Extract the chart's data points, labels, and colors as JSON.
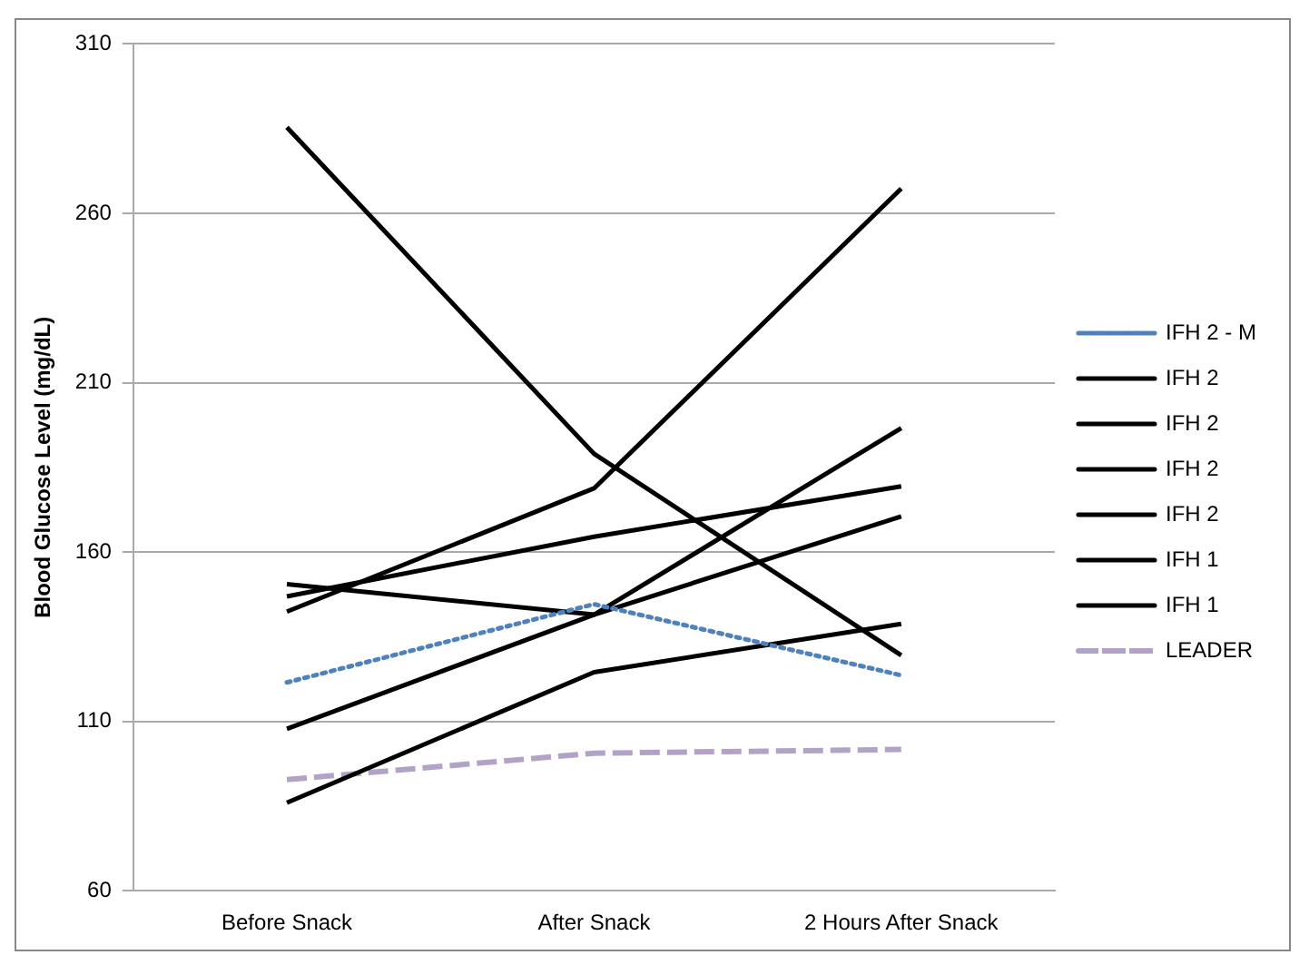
{
  "chart_data": {
    "type": "line",
    "ylabel": "Blood Glucose Level (mg/dL)",
    "categories": [
      "Before Snack",
      "After Snack",
      "2 Hours After Snack"
    ],
    "ylim": [
      60,
      310
    ],
    "yticks": [
      60,
      110,
      160,
      210,
      260,
      310
    ],
    "grid": "y",
    "legend": "right",
    "marker": "none",
    "series": [
      {
        "name": "IFH 2 - M",
        "color": "#4f81bd",
        "line_style": "dotted",
        "values": [
          121.5,
          144.6,
          123.6
        ]
      },
      {
        "name": "IFH 2",
        "color": "#000000",
        "line_style": "solid",
        "values": [
          285.4,
          189,
          129.5
        ]
      },
      {
        "name": "IFH 2",
        "color": "#000000",
        "line_style": "solid",
        "values": [
          142.4,
          178.8,
          267.3
        ]
      },
      {
        "name": "IFH 2",
        "color": "#000000",
        "line_style": "solid",
        "values": [
          146.9,
          164.5,
          179.4
        ]
      },
      {
        "name": "IFH 2",
        "color": "#000000",
        "line_style": "solid",
        "values": [
          150.5,
          141.5,
          170.5
        ]
      },
      {
        "name": "IFH 1",
        "color": "#000000",
        "line_style": "solid",
        "values": [
          107.8,
          141.5,
          196.6
        ]
      },
      {
        "name": "IFH 1",
        "color": "#000000",
        "line_style": "solid",
        "values": [
          86,
          124.5,
          138.8
        ]
      },
      {
        "name": "LEADER",
        "color": "#b3a2c7",
        "line_style": "dashed",
        "values": [
          92.8,
          100.6,
          101.7
        ]
      }
    ]
  }
}
